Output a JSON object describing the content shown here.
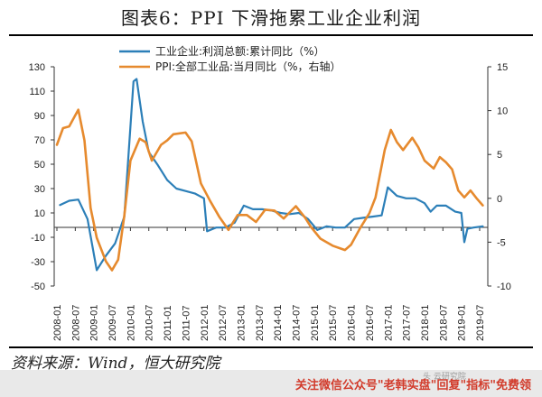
{
  "title": "图表6：PPI 下滑拖累工业企业利润",
  "source": "资料来源：Wind，恒大研究院",
  "footer": {
    "text": "关注微信公众号\"老韩实盘\"回复\"指标\"免费领",
    "mark": "头 云研究院"
  },
  "chart_data": {
    "type": "line",
    "title": "",
    "xlabel": "",
    "ylabel": "",
    "left_ylim": [
      -50,
      130
    ],
    "left_yticks": [
      130,
      110,
      90,
      70,
      50,
      30,
      10,
      -10,
      -30,
      -50
    ],
    "right_ylim": [
      -10,
      15
    ],
    "right_yticks": [
      15,
      10,
      5,
      0,
      -5,
      -10
    ],
    "x_tick_labels": [
      "2008-01",
      "2008-07",
      "2009-01",
      "2009-07",
      "2010-01",
      "2010-07",
      "2011-01",
      "2011-07",
      "2012-01",
      "2012-07",
      "2013-01",
      "2013-07",
      "2014-01",
      "2014-07",
      "2015-01",
      "2015-07",
      "2016-01",
      "2016-07",
      "2017-01",
      "2017-07",
      "2018-01",
      "2018-07",
      "2019-01",
      "2019-07"
    ],
    "grid": false,
    "legend_position": "top",
    "series": [
      {
        "name": "工业企业:利润总额:累计同比（%）",
        "axis": "left",
        "color": "#2c7fb8",
        "points": [
          [
            "2008-02",
            16.5
          ],
          [
            "2008-05",
            20.0
          ],
          [
            "2008-08",
            21.0
          ],
          [
            "2008-11",
            5.0
          ],
          [
            "2009-02",
            -37.0
          ],
          [
            "2009-05",
            -25.0
          ],
          [
            "2009-08",
            -15.0
          ],
          [
            "2009-11",
            7.0
          ],
          [
            "2010-02",
            118.0
          ],
          [
            "2010-03",
            120.0
          ],
          [
            "2010-05",
            85.0
          ],
          [
            "2010-07",
            60.0
          ],
          [
            "2010-10",
            49.0
          ],
          [
            "2011-01",
            37.0
          ],
          [
            "2011-04",
            30.0
          ],
          [
            "2011-07",
            28.0
          ],
          [
            "2011-10",
            26.0
          ],
          [
            "2012-01",
            22.0
          ],
          [
            "2012-02",
            -5.0
          ],
          [
            "2012-05",
            -2.0
          ],
          [
            "2012-08",
            -2.0
          ],
          [
            "2012-11",
            2.0
          ],
          [
            "2013-02",
            16.0
          ],
          [
            "2013-05",
            13.0
          ],
          [
            "2013-08",
            13.0
          ],
          [
            "2013-11",
            12.0
          ],
          [
            "2014-02",
            10.0
          ],
          [
            "2014-05",
            9.0
          ],
          [
            "2014-08",
            10.0
          ],
          [
            "2014-11",
            5.0
          ],
          [
            "2015-02",
            -4.0
          ],
          [
            "2015-05",
            -1.0
          ],
          [
            "2015-08",
            -2.0
          ],
          [
            "2015-11",
            -2.0
          ],
          [
            "2016-02",
            5.0
          ],
          [
            "2016-05",
            6.0
          ],
          [
            "2016-08",
            7.0
          ],
          [
            "2016-11",
            8.0
          ],
          [
            "2017-01",
            31.0
          ],
          [
            "2017-04",
            24.0
          ],
          [
            "2017-07",
            22.0
          ],
          [
            "2017-10",
            22.0
          ],
          [
            "2018-01",
            18.0
          ],
          [
            "2018-03",
            11.0
          ],
          [
            "2018-05",
            16.0
          ],
          [
            "2018-08",
            16.0
          ],
          [
            "2018-11",
            11.0
          ],
          [
            "2019-01",
            10.0
          ],
          [
            "2019-02",
            -14.0
          ],
          [
            "2019-03",
            -3.0
          ],
          [
            "2019-05",
            -2.0
          ],
          [
            "2019-08",
            -1.0
          ]
        ]
      },
      {
        "name": "PPI:全部工业品:当月同比（%，右轴）",
        "axis": "right",
        "color": "#e68a2e",
        "points": [
          [
            "2008-01",
            6.1
          ],
          [
            "2008-03",
            8.0
          ],
          [
            "2008-05",
            8.2
          ],
          [
            "2008-08",
            10.1
          ],
          [
            "2008-10",
            6.6
          ],
          [
            "2008-12",
            -1.1
          ],
          [
            "2009-02",
            -4.5
          ],
          [
            "2009-05",
            -7.2
          ],
          [
            "2009-07",
            -8.2
          ],
          [
            "2009-09",
            -7.0
          ],
          [
            "2009-11",
            -2.0
          ],
          [
            "2010-01",
            4.3
          ],
          [
            "2010-04",
            6.8
          ],
          [
            "2010-06",
            6.4
          ],
          [
            "2010-08",
            4.3
          ],
          [
            "2010-11",
            6.1
          ],
          [
            "2011-01",
            6.6
          ],
          [
            "2011-03",
            7.3
          ],
          [
            "2011-07",
            7.5
          ],
          [
            "2011-09",
            6.5
          ],
          [
            "2011-12",
            1.7
          ],
          [
            "2012-03",
            -0.3
          ],
          [
            "2012-06",
            -2.1
          ],
          [
            "2012-09",
            -3.6
          ],
          [
            "2012-12",
            -1.9
          ],
          [
            "2013-03",
            -1.9
          ],
          [
            "2013-06",
            -2.7
          ],
          [
            "2013-09",
            -1.3
          ],
          [
            "2013-12",
            -1.4
          ],
          [
            "2014-03",
            -2.3
          ],
          [
            "2014-07",
            -0.9
          ],
          [
            "2014-10",
            -2.2
          ],
          [
            "2014-12",
            -3.3
          ],
          [
            "2015-03",
            -4.6
          ],
          [
            "2015-07",
            -5.4
          ],
          [
            "2015-11",
            -5.9
          ],
          [
            "2016-01",
            -5.3
          ],
          [
            "2016-04",
            -3.4
          ],
          [
            "2016-07",
            -1.7
          ],
          [
            "2016-09",
            0.1
          ],
          [
            "2016-12",
            5.5
          ],
          [
            "2017-02",
            7.8
          ],
          [
            "2017-04",
            6.4
          ],
          [
            "2017-06",
            5.5
          ],
          [
            "2017-09",
            6.9
          ],
          [
            "2017-11",
            5.8
          ],
          [
            "2018-01",
            4.3
          ],
          [
            "2018-04",
            3.4
          ],
          [
            "2018-06",
            4.7
          ],
          [
            "2018-08",
            4.1
          ],
          [
            "2018-10",
            3.3
          ],
          [
            "2018-12",
            0.9
          ],
          [
            "2019-02",
            0.1
          ],
          [
            "2019-04",
            0.9
          ],
          [
            "2019-06",
            0.0
          ],
          [
            "2019-08",
            -0.8
          ]
        ]
      }
    ]
  }
}
